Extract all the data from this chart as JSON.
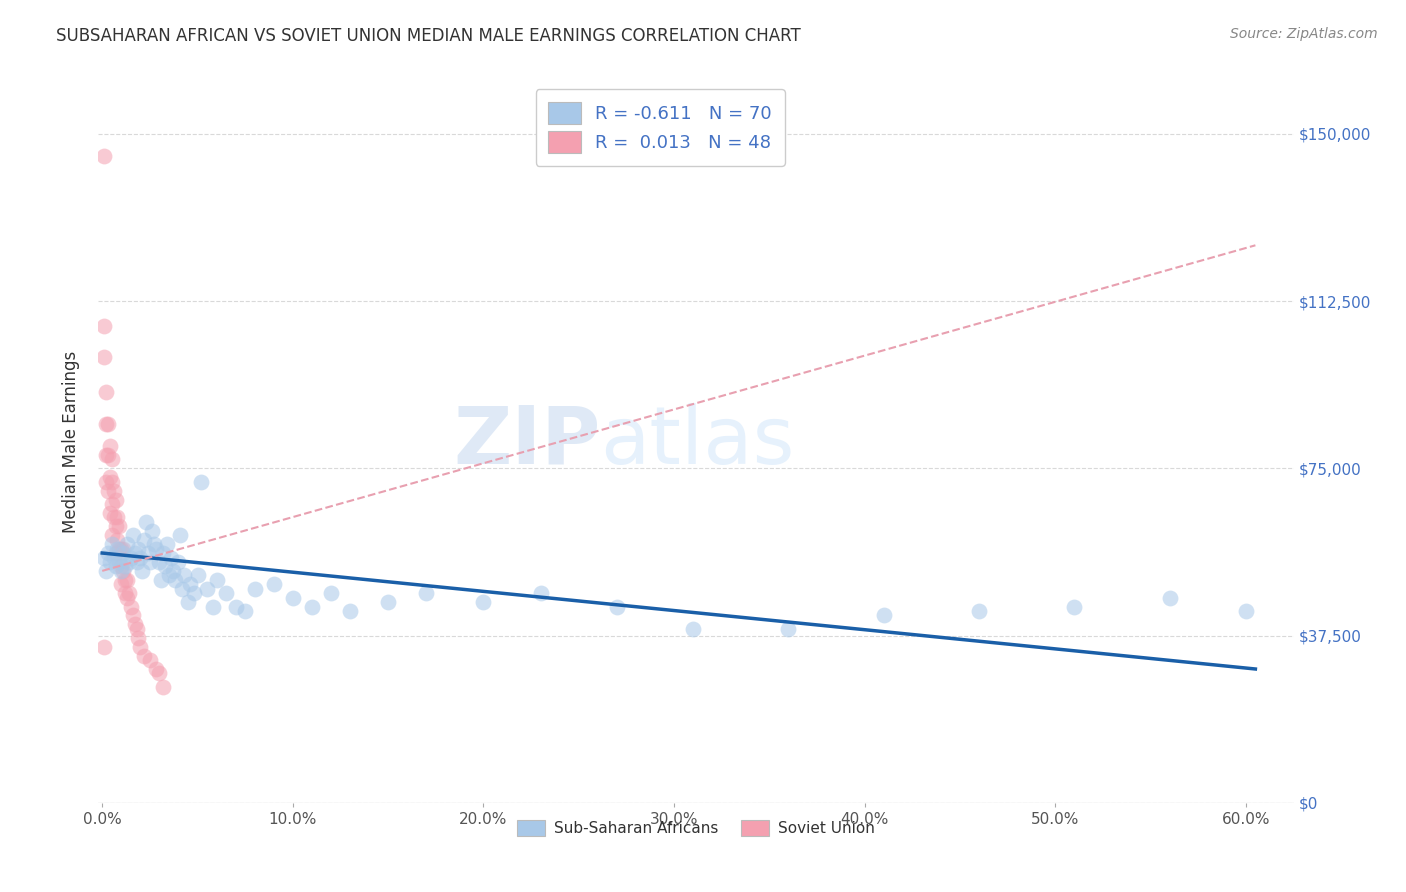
{
  "title": "SUBSAHARAN AFRICAN VS SOVIET UNION MEDIAN MALE EARNINGS CORRELATION CHART",
  "source": "Source: ZipAtlas.com",
  "xlabel_ticks": [
    "0.0%",
    "10.0%",
    "20.0%",
    "30.0%",
    "40.0%",
    "50.0%",
    "60.0%"
  ],
  "ylabel_ticks": [
    "$150,000",
    "$112,500",
    "$75,000",
    "$37,500"
  ],
  "ylabel_label": "Median Male Earnings",
  "ylim": [
    0,
    162000
  ],
  "xlim": [
    -0.002,
    0.625
  ],
  "legend_label1": "R = -0.611   N = 70",
  "legend_label2": "R =  0.013   N = 48",
  "legend_sublabel1": "Sub-Saharan Africans",
  "legend_sublabel2": "Soviet Union",
  "blue_color": "#a8c8e8",
  "pink_color": "#f4a0b0",
  "trend_blue_color": "#1a5fa8",
  "trend_pink_color": "#e8a0b0",
  "title_color": "#333333",
  "tick_label_color_right": "#4472c4",
  "watermark_zip": "ZIP",
  "watermark_atlas": "atlas",
  "blue_scatter_x": [
    0.001,
    0.002,
    0.003,
    0.004,
    0.005,
    0.006,
    0.007,
    0.008,
    0.009,
    0.01,
    0.011,
    0.012,
    0.013,
    0.014,
    0.015,
    0.016,
    0.017,
    0.018,
    0.019,
    0.02,
    0.021,
    0.022,
    0.023,
    0.024,
    0.025,
    0.026,
    0.027,
    0.028,
    0.03,
    0.031,
    0.032,
    0.033,
    0.034,
    0.035,
    0.036,
    0.037,
    0.038,
    0.04,
    0.041,
    0.042,
    0.043,
    0.045,
    0.046,
    0.048,
    0.05,
    0.052,
    0.055,
    0.058,
    0.06,
    0.065,
    0.07,
    0.075,
    0.08,
    0.09,
    0.1,
    0.11,
    0.12,
    0.13,
    0.15,
    0.17,
    0.2,
    0.23,
    0.27,
    0.31,
    0.36,
    0.41,
    0.46,
    0.51,
    0.56,
    0.6
  ],
  "blue_scatter_y": [
    55000,
    52000,
    56000,
    54000,
    58000,
    55000,
    53000,
    57000,
    54000,
    52000,
    56000,
    53000,
    58000,
    54000,
    55000,
    60000,
    56000,
    54000,
    57000,
    55000,
    52000,
    59000,
    63000,
    56000,
    54000,
    61000,
    58000,
    57000,
    54000,
    50000,
    56000,
    53000,
    58000,
    51000,
    55000,
    52000,
    50000,
    54000,
    60000,
    48000,
    51000,
    45000,
    49000,
    47000,
    51000,
    72000,
    48000,
    44000,
    50000,
    47000,
    44000,
    43000,
    48000,
    49000,
    46000,
    44000,
    47000,
    43000,
    45000,
    47000,
    45000,
    47000,
    44000,
    39000,
    39000,
    42000,
    43000,
    44000,
    46000,
    43000
  ],
  "pink_scatter_x": [
    0.001,
    0.001,
    0.001,
    0.002,
    0.002,
    0.002,
    0.002,
    0.003,
    0.003,
    0.003,
    0.004,
    0.004,
    0.004,
    0.005,
    0.005,
    0.005,
    0.005,
    0.006,
    0.006,
    0.007,
    0.007,
    0.007,
    0.008,
    0.008,
    0.009,
    0.009,
    0.01,
    0.01,
    0.01,
    0.011,
    0.011,
    0.012,
    0.012,
    0.013,
    0.013,
    0.014,
    0.015,
    0.016,
    0.017,
    0.018,
    0.019,
    0.02,
    0.022,
    0.025,
    0.028,
    0.03,
    0.032,
    0.001
  ],
  "pink_scatter_y": [
    145000,
    107000,
    100000,
    92000,
    85000,
    78000,
    72000,
    85000,
    78000,
    70000,
    80000,
    73000,
    65000,
    77000,
    72000,
    67000,
    60000,
    70000,
    64000,
    68000,
    62000,
    56000,
    64000,
    59000,
    62000,
    57000,
    57000,
    53000,
    49000,
    57000,
    52000,
    50000,
    47000,
    50000,
    46000,
    47000,
    44000,
    42000,
    40000,
    39000,
    37000,
    35000,
    33000,
    32000,
    30000,
    29000,
    26000,
    35000
  ],
  "blue_trend_x": [
    0.0,
    0.605
  ],
  "blue_trend_y": [
    56000,
    30000
  ],
  "pink_trend_x": [
    0.0,
    0.605
  ],
  "pink_trend_y": [
    52000,
    125000
  ]
}
